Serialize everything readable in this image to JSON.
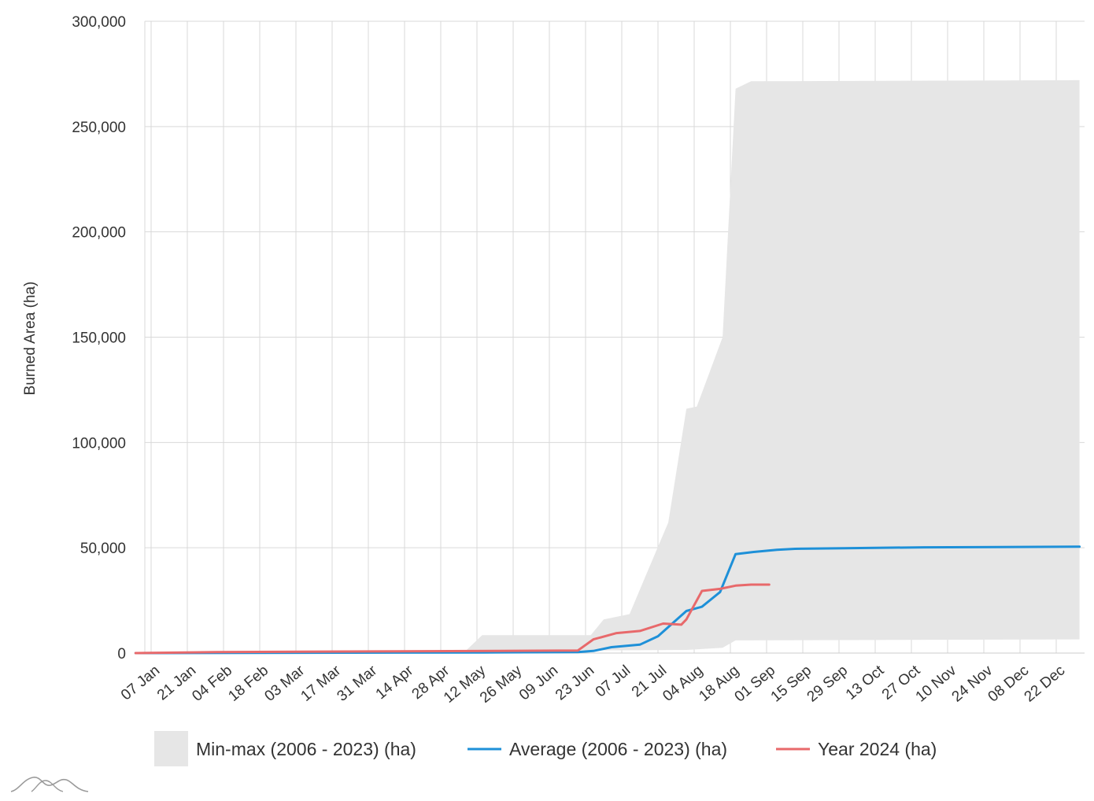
{
  "chart_data": {
    "type": "area",
    "title": "",
    "xlabel": "",
    "ylabel": "Burned Area (ha)",
    "ylim": [
      0,
      300000
    ],
    "yticks": [
      0,
      50000,
      100000,
      150000,
      200000,
      250000,
      300000
    ],
    "ytick_labels": [
      "0",
      "50,000",
      "100,000",
      "150,000",
      "200,000",
      "250,000",
      "300,000"
    ],
    "xtick_labels": [
      "07 Jan",
      "21 Jan",
      "04 Feb",
      "18 Feb",
      "03 Mar",
      "17 Mar",
      "31 Mar",
      "14 Apr",
      "28 Apr",
      "12 May",
      "26 May",
      "09 Jun",
      "23 Jun",
      "07 Jul",
      "21 Jul",
      "04 Aug",
      "18 Aug",
      "01 Sep",
      "15 Sep",
      "29 Sep",
      "13 Oct",
      "27 Oct",
      "10 Nov",
      "24 Nov",
      "08 Dec",
      "22 Dec"
    ],
    "grid": true,
    "legend_position": "bottom",
    "series": [
      {
        "name": "Min-max (2006 - 2023) (ha)",
        "kind": "band",
        "color": "#e6e6e6",
        "upper": [
          [
            "2024-01-01",
            0
          ],
          [
            "2024-04-01",
            500
          ],
          [
            "2024-05-08",
            1500
          ],
          [
            "2024-05-14",
            8500
          ],
          [
            "2024-06-25",
            8500
          ],
          [
            "2024-06-30",
            16000
          ],
          [
            "2024-07-10",
            18500
          ],
          [
            "2024-07-16",
            36000
          ],
          [
            "2024-07-25",
            62000
          ],
          [
            "2024-08-01",
            116000
          ],
          [
            "2024-08-05",
            117000
          ],
          [
            "2024-08-15",
            150000
          ],
          [
            "2024-08-20",
            268000
          ],
          [
            "2024-08-26",
            271500
          ],
          [
            "2024-12-31",
            272000
          ]
        ],
        "lower": [
          [
            "2024-01-01",
            0
          ],
          [
            "2024-08-01",
            1500
          ],
          [
            "2024-08-15",
            2500
          ],
          [
            "2024-08-20",
            6000
          ],
          [
            "2024-12-31",
            6500
          ]
        ]
      },
      {
        "name": "Average (2006 - 2023) (ha)",
        "kind": "line",
        "color": "#1e90d8",
        "points": [
          [
            "2024-01-01",
            0
          ],
          [
            "2024-05-15",
            300
          ],
          [
            "2024-06-20",
            500
          ],
          [
            "2024-06-26",
            1000
          ],
          [
            "2024-07-03",
            2800
          ],
          [
            "2024-07-14",
            4000
          ],
          [
            "2024-07-21",
            8000
          ],
          [
            "2024-08-01",
            20000
          ],
          [
            "2024-08-07",
            22000
          ],
          [
            "2024-08-14",
            29000
          ],
          [
            "2024-08-20",
            47000
          ],
          [
            "2024-08-27",
            48000
          ],
          [
            "2024-09-05",
            49000
          ],
          [
            "2024-09-12",
            49500
          ],
          [
            "2024-10-01",
            49800
          ],
          [
            "2024-11-01",
            50200
          ],
          [
            "2024-12-31",
            50500
          ]
        ]
      },
      {
        "name": "Year 2024 (ha)",
        "kind": "line",
        "color": "#e8696b",
        "points": [
          [
            "2024-01-01",
            0
          ],
          [
            "2024-02-01",
            500
          ],
          [
            "2024-04-01",
            800
          ],
          [
            "2024-06-20",
            1200
          ],
          [
            "2024-06-26",
            6500
          ],
          [
            "2024-07-05",
            9500
          ],
          [
            "2024-07-14",
            10500
          ],
          [
            "2024-07-23",
            14000
          ],
          [
            "2024-07-30",
            13500
          ],
          [
            "2024-08-01",
            16000
          ],
          [
            "2024-08-07",
            29500
          ],
          [
            "2024-08-14",
            30500
          ],
          [
            "2024-08-20",
            32000
          ],
          [
            "2024-08-26",
            32500
          ],
          [
            "2024-09-02",
            32500
          ]
        ]
      }
    ]
  }
}
